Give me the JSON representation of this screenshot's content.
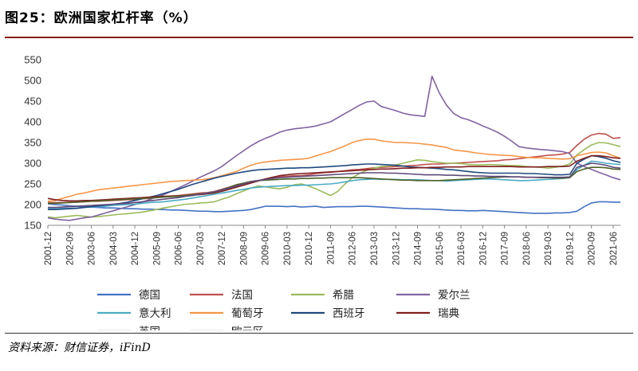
{
  "figure": {
    "title": "图25：欧洲国家杠杆率（%）",
    "source": "资料来源：财信证券，iFinD"
  },
  "chart_data": {
    "type": "line",
    "title": "欧洲国家杠杆率（%）",
    "xlabel": "",
    "ylabel": "",
    "ylim": [
      150,
      550
    ],
    "yticks": [
      150,
      200,
      250,
      300,
      350,
      400,
      450,
      500,
      550
    ],
    "grid": false,
    "legend_position": "bottom",
    "x": [
      "2001-12",
      "2002-03",
      "2002-06",
      "2002-09",
      "2002-12",
      "2003-03",
      "2003-06",
      "2003-09",
      "2003-12",
      "2004-03",
      "2004-06",
      "2004-09",
      "2004-12",
      "2005-03",
      "2005-06",
      "2005-09",
      "2005-12",
      "2006-03",
      "2006-06",
      "2006-09",
      "2006-12",
      "2007-03",
      "2007-06",
      "2007-09",
      "2007-12",
      "2008-03",
      "2008-06",
      "2008-09",
      "2008-12",
      "2009-03",
      "2009-06",
      "2009-09",
      "2009-12",
      "2010-03",
      "2010-06",
      "2010-09",
      "2010-12",
      "2011-03",
      "2011-06",
      "2011-09",
      "2011-12",
      "2012-03",
      "2012-06",
      "2012-09",
      "2012-12",
      "2013-03",
      "2013-06",
      "2013-09",
      "2013-12",
      "2014-03",
      "2014-06",
      "2014-09",
      "2014-12",
      "2015-03",
      "2015-06",
      "2015-09",
      "2015-12",
      "2016-03",
      "2016-06",
      "2016-09",
      "2016-12",
      "2017-03",
      "2017-06",
      "2017-09",
      "2017-12",
      "2018-03",
      "2018-06",
      "2018-09",
      "2018-12",
      "2019-03",
      "2019-06",
      "2019-09",
      "2019-12",
      "2020-03",
      "2020-06",
      "2020-09",
      "2020-12",
      "2021-03",
      "2021-06",
      "2021-09"
    ],
    "x_tick_labels": [
      "2001-12",
      "2002-09",
      "2003-06",
      "2004-03",
      "2004-12",
      "2005-09",
      "2006-06",
      "2007-03",
      "2007-12",
      "2008-09",
      "2009-06",
      "2010-03",
      "2010-12",
      "2011-09",
      "2012-06",
      "2013-03",
      "2013-12",
      "2014-09",
      "2015-06",
      "2016-03",
      "2016-12",
      "2017-09",
      "2018-06",
      "2019-03",
      "2019-12",
      "2020-09",
      "2021-06"
    ],
    "series": [
      {
        "name": "德国",
        "color": "#4472c4",
        "values": [
          202,
          200,
          199,
          197,
          196,
          195,
          194,
          193,
          192,
          192,
          191,
          190,
          190,
          189,
          189,
          188,
          188,
          187,
          187,
          186,
          185,
          184,
          184,
          183,
          183,
          184,
          185,
          186,
          188,
          192,
          196,
          196,
          196,
          195,
          196,
          194,
          195,
          196,
          193,
          194,
          195,
          195,
          195,
          196,
          196,
          195,
          194,
          193,
          192,
          191,
          190,
          190,
          189,
          189,
          188,
          187,
          186,
          186,
          185,
          185,
          186,
          185,
          184,
          183,
          182,
          181,
          180,
          179,
          179,
          179,
          180,
          180,
          181,
          184,
          195,
          204,
          207,
          207,
          206,
          206
        ]
      },
      {
        "name": "法国",
        "color": "#c0504d",
        "values": [
          205,
          205,
          205,
          206,
          206,
          207,
          208,
          208,
          209,
          210,
          211,
          212,
          212,
          214,
          215,
          217,
          219,
          221,
          222,
          224,
          226,
          228,
          229,
          232,
          237,
          242,
          247,
          250,
          254,
          258,
          262,
          266,
          268,
          268,
          270,
          270,
          272,
          275,
          277,
          278,
          280,
          282,
          284,
          285,
          287,
          289,
          290,
          291,
          292,
          293,
          294,
          295,
          297,
          298,
          298,
          299,
          300,
          301,
          302,
          303,
          304,
          305,
          306,
          308,
          309,
          311,
          313,
          315,
          317,
          319,
          320,
          322,
          326,
          343,
          358,
          368,
          372,
          370,
          360,
          362
        ]
      },
      {
        "name": "希腊",
        "color": "#9bbb59",
        "values": [
          170,
          168,
          170,
          172,
          174,
          172,
          170,
          171,
          173,
          175,
          177,
          178,
          180,
          182,
          185,
          188,
          192,
          195,
          198,
          201,
          202,
          204,
          205,
          207,
          213,
          218,
          226,
          233,
          240,
          245,
          243,
          240,
          238,
          242,
          248,
          250,
          245,
          238,
          230,
          222,
          232,
          250,
          265,
          275,
          283,
          288,
          292,
          293,
          296,
          300,
          304,
          308,
          307,
          304,
          302,
          300,
          300,
          299,
          297,
          296,
          296,
          297,
          296,
          295,
          294,
          294,
          292,
          291,
          290,
          288,
          290,
          293,
          298,
          320,
          333,
          344,
          350,
          349,
          345,
          340
        ]
      },
      {
        "name": "爱尔兰",
        "color": "#8064a2",
        "values": [
          168,
          165,
          163,
          162,
          165,
          168,
          170,
          175,
          180,
          185,
          190,
          195,
          200,
          206,
          212,
          218,
          224,
          232,
          240,
          248,
          257,
          266,
          274,
          282,
          292,
          305,
          318,
          330,
          342,
          352,
          360,
          367,
          375,
          380,
          383,
          385,
          387,
          390,
          395,
          400,
          410,
          420,
          430,
          440,
          448,
          450,
          437,
          432,
          427,
          421,
          417,
          415,
          413,
          510,
          470,
          440,
          420,
          410,
          405,
          398,
          390,
          383,
          375,
          365,
          353,
          340,
          337,
          335,
          333,
          332,
          330,
          328,
          323,
          300,
          292,
          285,
          278,
          272,
          265,
          260
        ]
      },
      {
        "name": "意大利",
        "color": "#4bacc6",
        "values": [
          190,
          190,
          191,
          191,
          192,
          193,
          194,
          195,
          196,
          198,
          199,
          200,
          201,
          203,
          205,
          206,
          207,
          209,
          211,
          213,
          216,
          219,
          222,
          225,
          228,
          231,
          234,
          237,
          240,
          242,
          243,
          244,
          245,
          246,
          246,
          247,
          247,
          248,
          249,
          250,
          252,
          255,
          258,
          260,
          261,
          262,
          261,
          261,
          261,
          260,
          260,
          260,
          259,
          258,
          258,
          257,
          258,
          259,
          260,
          261,
          262,
          262,
          261,
          260,
          259,
          258,
          258,
          259,
          260,
          261,
          262,
          263,
          265,
          285,
          295,
          305,
          303,
          300,
          298,
          297
        ]
      },
      {
        "name": "葡萄牙",
        "color": "#f79646",
        "values": [
          208,
          210,
          215,
          220,
          225,
          228,
          232,
          236,
          238,
          240,
          242,
          244,
          246,
          248,
          250,
          252,
          254,
          256,
          257,
          258,
          259,
          260,
          262,
          265,
          270,
          275,
          280,
          288,
          295,
          300,
          303,
          305,
          307,
          308,
          309,
          310,
          312,
          318,
          323,
          328,
          335,
          342,
          350,
          355,
          358,
          358,
          354,
          352,
          350,
          350,
          349,
          348,
          346,
          344,
          341,
          338,
          332,
          330,
          328,
          325,
          323,
          321,
          320,
          319,
          318,
          316,
          314,
          313,
          313,
          312,
          311,
          310,
          311,
          318,
          322,
          326,
          327,
          325,
          318,
          312
        ]
      },
      {
        "name": "西班牙",
        "color": "#1f497d",
        "values": [
          188,
          188,
          189,
          190,
          191,
          193,
          195,
          197,
          199,
          201,
          203,
          206,
          210,
          214,
          218,
          222,
          227,
          232,
          237,
          243,
          249,
          254,
          259,
          264,
          268,
          272,
          276,
          279,
          282,
          284,
          285,
          286,
          287,
          288,
          288,
          289,
          289,
          290,
          291,
          292,
          293,
          294,
          296,
          297,
          298,
          298,
          297,
          296,
          295,
          293,
          291,
          290,
          289,
          288,
          287,
          285,
          284,
          282,
          280,
          278,
          277,
          276,
          276,
          276,
          276,
          276,
          275,
          275,
          274,
          273,
          272,
          272,
          273,
          300,
          310,
          318,
          316,
          312,
          306,
          302
        ]
      },
      {
        "name": "瑞典",
        "color": "#7f1f1f",
        "values": [
          215,
          212,
          210,
          209,
          209,
          210,
          210,
          211,
          212,
          213,
          214,
          215,
          216,
          217,
          218,
          219,
          220,
          220,
          221,
          222,
          223,
          224,
          226,
          228,
          232,
          237,
          242,
          247,
          252,
          257,
          262,
          266,
          270,
          272,
          274,
          275,
          276,
          277,
          278,
          279,
          280,
          281,
          282,
          283,
          284,
          285,
          286,
          286,
          287,
          288,
          288,
          289,
          289,
          290,
          290,
          291,
          291,
          291,
          292,
          292,
          292,
          292,
          292,
          292,
          292,
          291,
          291,
          291,
          291,
          292,
          292,
          292,
          293,
          305,
          312,
          318,
          318,
          316,
          313,
          312
        ]
      },
      {
        "name": "英国",
        "color": "#4f6228",
        "values": [
          203,
          203,
          204,
          205,
          206,
          207,
          208,
          209,
          210,
          211,
          212,
          213,
          214,
          215,
          216,
          217,
          218,
          219,
          220,
          222,
          224,
          226,
          228,
          230,
          236,
          242,
          248,
          252,
          256,
          258,
          259,
          260,
          261,
          262,
          262,
          263,
          263,
          264,
          264,
          265,
          265,
          265,
          265,
          265,
          264,
          263,
          262,
          261,
          260,
          259,
          259,
          258,
          258,
          258,
          258,
          259,
          260,
          261,
          262,
          263,
          264,
          265,
          266,
          267,
          267,
          267,
          266,
          266,
          265,
          265,
          264,
          264,
          265,
          280,
          286,
          290,
          290,
          289,
          286,
          285
        ]
      },
      {
        "name": "欧元区",
        "color": "#5f497a",
        "values": [
          193,
          193,
          194,
          195,
          196,
          197,
          198,
          199,
          200,
          201,
          202,
          203,
          205,
          207,
          209,
          211,
          213,
          215,
          217,
          220,
          222,
          225,
          228,
          231,
          235,
          240,
          245,
          250,
          255,
          258,
          261,
          263,
          265,
          266,
          267,
          268,
          269,
          270,
          271,
          272,
          273,
          274,
          275,
          276,
          277,
          277,
          277,
          276,
          276,
          275,
          274,
          273,
          272,
          272,
          272,
          271,
          271,
          270,
          270,
          269,
          269,
          268,
          268,
          268,
          267,
          267,
          266,
          266,
          266,
          266,
          266,
          266,
          267,
          290,
          295,
          300,
          298,
          295,
          290,
          288
        ]
      }
    ]
  }
}
